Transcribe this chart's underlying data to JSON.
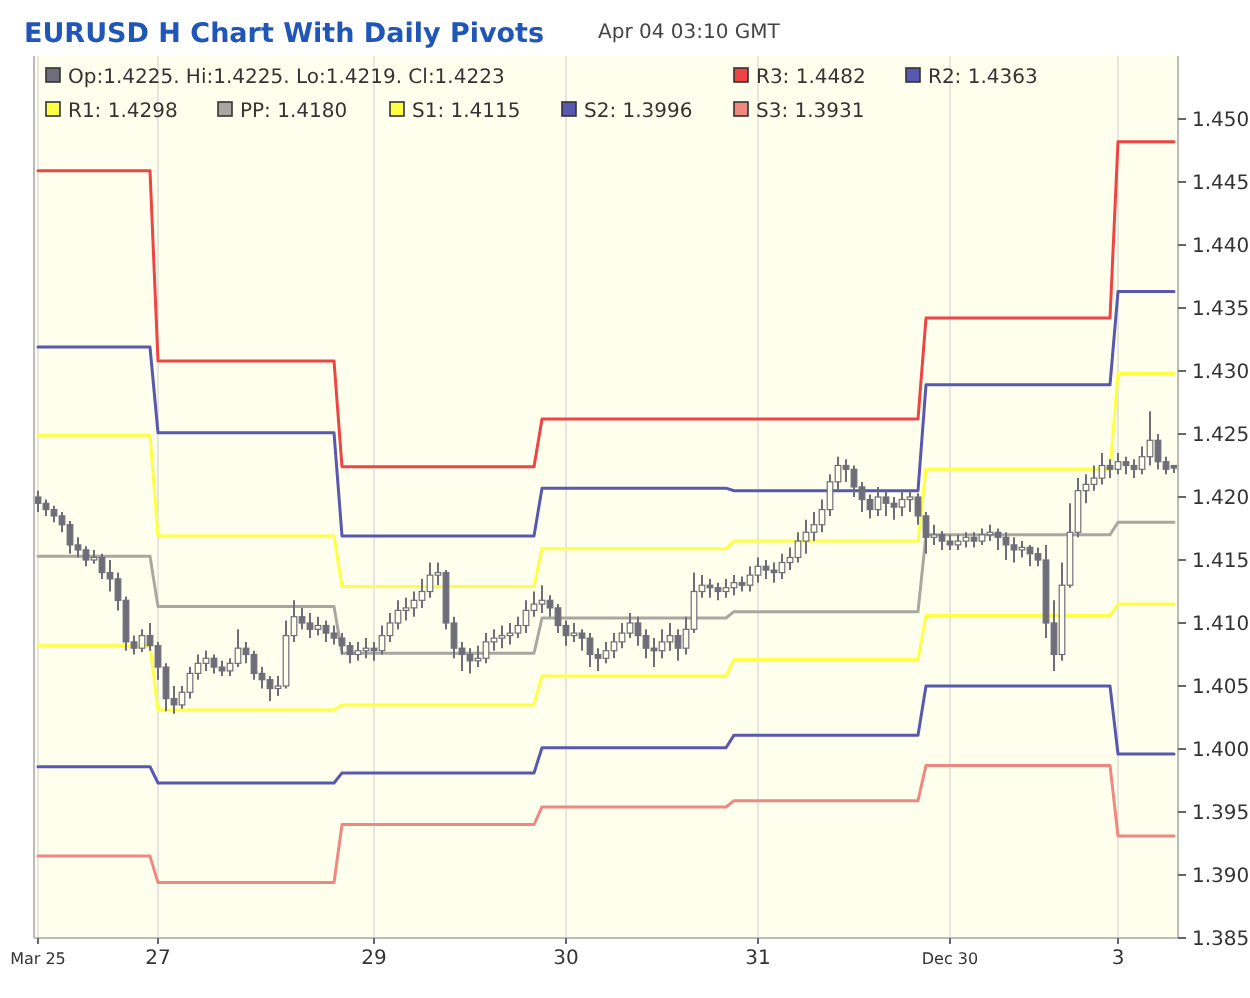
{
  "chart_data": {
    "type": "candlestick",
    "title": "EURUSD H Chart With Daily Pivots",
    "subtitle": "Apr 04 03:10 GMT",
    "categories": [
      "Mar 25",
      null,
      null,
      null,
      null,
      null,
      null,
      null,
      null,
      null,
      null,
      null,
      null,
      null,
      null,
      "27",
      null,
      null,
      null,
      null,
      null,
      null,
      null,
      null,
      null,
      null,
      null,
      null,
      null,
      null,
      null,
      null,
      null,
      null,
      null,
      null,
      null,
      null,
      null,
      null,
      null,
      null,
      "29",
      null,
      null,
      null,
      null,
      null,
      null,
      null,
      null,
      null,
      null,
      null,
      null,
      null,
      null,
      null,
      null,
      null,
      null,
      null,
      null,
      null,
      null,
      null,
      "30",
      null,
      null,
      null,
      null,
      null,
      null,
      null,
      null,
      null,
      null,
      null,
      null,
      null,
      null,
      null,
      null,
      null,
      null,
      null,
      null,
      null,
      null,
      null,
      "31",
      null,
      null,
      null,
      null,
      null,
      null,
      null,
      null,
      null,
      null,
      null,
      null,
      null,
      null,
      null,
      null,
      null,
      null,
      null,
      null,
      null,
      null,
      null,
      "Dec 30",
      null,
      null,
      null,
      null,
      null,
      null,
      null,
      null,
      null,
      null,
      null,
      null,
      null,
      null,
      null,
      null,
      null,
      null,
      null,
      null,
      "3",
      null,
      null,
      null,
      null,
      null,
      null,
      null
    ],
    "ylim": [
      1.385,
      1.455
    ],
    "yticks": [
      {
        "value": 1.385,
        "label": "1.385"
      },
      {
        "value": 1.39,
        "label": "1.390"
      },
      {
        "value": 1.395,
        "label": "1.395"
      },
      {
        "value": 1.4,
        "label": "1.400"
      },
      {
        "value": 1.405,
        "label": "1.405"
      },
      {
        "value": 1.41,
        "label": "1.410"
      },
      {
        "value": 1.415,
        "label": "1.415"
      },
      {
        "value": 1.42,
        "label": "1.420"
      },
      {
        "value": 1.425,
        "label": "1.425"
      },
      {
        "value": 1.43,
        "label": "1.430"
      },
      {
        "value": 1.435,
        "label": "1.435"
      },
      {
        "value": 1.44,
        "label": "1.440"
      },
      {
        "value": 1.445,
        "label": "1.445"
      },
      {
        "value": 1.45,
        "label": "1.450"
      }
    ],
    "grid": "x",
    "legend": "top left",
    "series": [
      {
        "name": "Op:1.4225. Hi:1.4225. Lo:1.4219. Cl:1.4223",
        "color": "#6e6e7a",
        "ohlc": [
          [
            1.42,
            1.4205,
            1.4188,
            1.4195
          ],
          [
            1.4195,
            1.4198,
            1.4185,
            1.419
          ],
          [
            1.419,
            1.4193,
            1.418,
            1.4185
          ],
          [
            1.4185,
            1.4188,
            1.4172,
            1.4178
          ],
          [
            1.4178,
            1.4181,
            1.4155,
            1.4162
          ],
          [
            1.4162,
            1.4168,
            1.4152,
            1.4158
          ],
          [
            1.4158,
            1.4161,
            1.4145,
            1.415
          ],
          [
            1.415,
            1.4158,
            1.4147,
            1.4152
          ],
          [
            1.4152,
            1.4155,
            1.4135,
            1.414
          ],
          [
            1.414,
            1.415,
            1.4125,
            1.4135
          ],
          [
            1.4135,
            1.414,
            1.411,
            1.4118
          ],
          [
            1.4118,
            1.4121,
            1.4078,
            1.4085
          ],
          [
            1.4085,
            1.409,
            1.4075,
            1.408
          ],
          [
            1.408,
            1.4095,
            1.4077,
            1.409
          ],
          [
            1.409,
            1.41,
            1.4078,
            1.4082
          ],
          [
            1.4082,
            1.4085,
            1.4055,
            1.4065
          ],
          [
            1.4065,
            1.4068,
            1.403,
            1.404
          ],
          [
            1.404,
            1.405,
            1.4028,
            1.4035
          ],
          [
            1.4035,
            1.405,
            1.4032,
            1.4045
          ],
          [
            1.4045,
            1.4065,
            1.404,
            1.406
          ],
          [
            1.406,
            1.4075,
            1.4055,
            1.4068
          ],
          [
            1.4068,
            1.4078,
            1.4062,
            1.4072
          ],
          [
            1.4072,
            1.4075,
            1.406,
            1.4065
          ],
          [
            1.4065,
            1.407,
            1.4058,
            1.4062
          ],
          [
            1.4062,
            1.4072,
            1.4058,
            1.4068
          ],
          [
            1.4068,
            1.4095,
            1.4065,
            1.408
          ],
          [
            1.408,
            1.4085,
            1.4068,
            1.4075
          ],
          [
            1.4075,
            1.4078,
            1.4055,
            1.406
          ],
          [
            1.406,
            1.4065,
            1.4048,
            1.4055
          ],
          [
            1.4055,
            1.4058,
            1.4038,
            1.4048
          ],
          [
            1.4048,
            1.4058,
            1.4042,
            1.405
          ],
          [
            1.405,
            1.4102,
            1.4048,
            1.409
          ],
          [
            1.409,
            1.4118,
            1.4085,
            1.4105
          ],
          [
            1.4105,
            1.4112,
            1.4095,
            1.41
          ],
          [
            1.41,
            1.4108,
            1.4088,
            1.4095
          ],
          [
            1.4095,
            1.4105,
            1.409,
            1.4098
          ],
          [
            1.4098,
            1.4102,
            1.4085,
            1.4092
          ],
          [
            1.4092,
            1.4098,
            1.4083,
            1.4088
          ],
          [
            1.4088,
            1.4092,
            1.4075,
            1.4082
          ],
          [
            1.4082,
            1.4085,
            1.4068,
            1.4075
          ],
          [
            1.4075,
            1.4085,
            1.407,
            1.4078
          ],
          [
            1.4078,
            1.4088,
            1.4072,
            1.408
          ],
          [
            1.408,
            1.4085,
            1.407,
            1.4078
          ],
          [
            1.4078,
            1.4098,
            1.4075,
            1.409
          ],
          [
            1.409,
            1.4108,
            1.4085,
            1.41
          ],
          [
            1.41,
            1.4118,
            1.4095,
            1.411
          ],
          [
            1.411,
            1.412,
            1.4102,
            1.4112
          ],
          [
            1.4112,
            1.4125,
            1.4105,
            1.4118
          ],
          [
            1.4118,
            1.4135,
            1.4112,
            1.4125
          ],
          [
            1.4125,
            1.4148,
            1.412,
            1.4138
          ],
          [
            1.4138,
            1.4148,
            1.413,
            1.414
          ],
          [
            1.414,
            1.4142,
            1.4095,
            1.41
          ],
          [
            1.41,
            1.4105,
            1.4072,
            1.408
          ],
          [
            1.408,
            1.4085,
            1.4062,
            1.4075
          ],
          [
            1.4075,
            1.408,
            1.406,
            1.407
          ],
          [
            1.407,
            1.4082,
            1.4065,
            1.4072
          ],
          [
            1.4072,
            1.4092,
            1.4068,
            1.4085
          ],
          [
            1.4085,
            1.4095,
            1.4078,
            1.4088
          ],
          [
            1.4088,
            1.4098,
            1.408,
            1.409
          ],
          [
            1.409,
            1.41,
            1.4083,
            1.4092
          ],
          [
            1.4092,
            1.4105,
            1.4088,
            1.4098
          ],
          [
            1.4098,
            1.4118,
            1.4092,
            1.411
          ],
          [
            1.411,
            1.4125,
            1.4105,
            1.4115
          ],
          [
            1.4115,
            1.413,
            1.4108,
            1.4118
          ],
          [
            1.4118,
            1.4122,
            1.4105,
            1.4112
          ],
          [
            1.4112,
            1.4115,
            1.4092,
            1.4098
          ],
          [
            1.4098,
            1.4102,
            1.4082,
            1.409
          ],
          [
            1.409,
            1.41,
            1.4085,
            1.4092
          ],
          [
            1.4092,
            1.4095,
            1.4078,
            1.4088
          ],
          [
            1.4088,
            1.4092,
            1.4065,
            1.4075
          ],
          [
            1.4075,
            1.408,
            1.4062,
            1.4072
          ],
          [
            1.4072,
            1.4085,
            1.4068,
            1.4078
          ],
          [
            1.4078,
            1.4092,
            1.4072,
            1.4085
          ],
          [
            1.4085,
            1.41,
            1.408,
            1.4092
          ],
          [
            1.4092,
            1.4108,
            1.4088,
            1.41
          ],
          [
            1.41,
            1.4105,
            1.4082,
            1.409
          ],
          [
            1.409,
            1.4095,
            1.4072,
            1.408
          ],
          [
            1.408,
            1.4088,
            1.4065,
            1.4078
          ],
          [
            1.4078,
            1.4095,
            1.4072,
            1.4085
          ],
          [
            1.4085,
            1.41,
            1.4078,
            1.409
          ],
          [
            1.409,
            1.4095,
            1.407,
            1.408
          ],
          [
            1.408,
            1.4105,
            1.4075,
            1.4095
          ],
          [
            1.4095,
            1.414,
            1.4092,
            1.4125
          ],
          [
            1.4125,
            1.4138,
            1.412,
            1.413
          ],
          [
            1.413,
            1.4135,
            1.412,
            1.4128
          ],
          [
            1.4128,
            1.4132,
            1.4118,
            1.4125
          ],
          [
            1.4125,
            1.4135,
            1.412,
            1.4128
          ],
          [
            1.4128,
            1.4138,
            1.4122,
            1.4132
          ],
          [
            1.4132,
            1.4137,
            1.4125,
            1.413
          ],
          [
            1.413,
            1.4145,
            1.4125,
            1.4138
          ],
          [
            1.4138,
            1.4152,
            1.4132,
            1.4145
          ],
          [
            1.4145,
            1.415,
            1.4135,
            1.4142
          ],
          [
            1.4142,
            1.4148,
            1.4132,
            1.414
          ],
          [
            1.414,
            1.4155,
            1.4135,
            1.4148
          ],
          [
            1.4148,
            1.416,
            1.4142,
            1.4152
          ],
          [
            1.4152,
            1.4172,
            1.4148,
            1.4165
          ],
          [
            1.4165,
            1.4182,
            1.4155,
            1.4172
          ],
          [
            1.4172,
            1.4188,
            1.4165,
            1.4178
          ],
          [
            1.4178,
            1.4198,
            1.4172,
            1.419
          ],
          [
            1.419,
            1.4218,
            1.4185,
            1.4212
          ],
          [
            1.4212,
            1.4232,
            1.4205,
            1.4225
          ],
          [
            1.4225,
            1.423,
            1.4212,
            1.4222
          ],
          [
            1.4222,
            1.4225,
            1.42,
            1.4208
          ],
          [
            1.4208,
            1.4212,
            1.4188,
            1.4198
          ],
          [
            1.4198,
            1.4202,
            1.4183,
            1.419
          ],
          [
            1.419,
            1.4208,
            1.4185,
            1.42
          ],
          [
            1.42,
            1.4205,
            1.4185,
            1.4195
          ],
          [
            1.4195,
            1.42,
            1.4182,
            1.4192
          ],
          [
            1.4192,
            1.4205,
            1.4185,
            1.4198
          ],
          [
            1.4198,
            1.4205,
            1.4188,
            1.42
          ],
          [
            1.42,
            1.4203,
            1.4178,
            1.4185
          ],
          [
            1.4185,
            1.4188,
            1.4155,
            1.4168
          ],
          [
            1.4168,
            1.4178,
            1.4162,
            1.417
          ],
          [
            1.417,
            1.4173,
            1.4158,
            1.4165
          ],
          [
            1.4165,
            1.417,
            1.4158,
            1.4162
          ],
          [
            1.4162,
            1.417,
            1.4158,
            1.4165
          ],
          [
            1.4165,
            1.4172,
            1.416,
            1.4168
          ],
          [
            1.4168,
            1.4172,
            1.416,
            1.4165
          ],
          [
            1.4165,
            1.4175,
            1.4162,
            1.417
          ],
          [
            1.417,
            1.4178,
            1.4165,
            1.4172
          ],
          [
            1.4172,
            1.4175,
            1.4158,
            1.4168
          ],
          [
            1.4168,
            1.4172,
            1.415,
            1.4162
          ],
          [
            1.4162,
            1.4168,
            1.4148,
            1.4158
          ],
          [
            1.4158,
            1.4165,
            1.4152,
            1.416
          ],
          [
            1.416,
            1.4162,
            1.4145,
            1.4155
          ],
          [
            1.4155,
            1.416,
            1.4145,
            1.415
          ],
          [
            1.415,
            1.4162,
            1.4088,
            1.41
          ],
          [
            1.41,
            1.4118,
            1.4062,
            1.4075
          ],
          [
            1.4075,
            1.4148,
            1.407,
            1.413
          ],
          [
            1.413,
            1.4195,
            1.4128,
            1.4172
          ],
          [
            1.4172,
            1.4215,
            1.4168,
            1.4205
          ],
          [
            1.4205,
            1.4218,
            1.4195,
            1.421
          ],
          [
            1.421,
            1.4225,
            1.4205,
            1.4215
          ],
          [
            1.4215,
            1.4235,
            1.421,
            1.4225
          ],
          [
            1.4225,
            1.423,
            1.4215,
            1.4222
          ],
          [
            1.4222,
            1.4235,
            1.4218,
            1.4228
          ],
          [
            1.4228,
            1.4232,
            1.4218,
            1.4225
          ],
          [
            1.4225,
            1.423,
            1.4215,
            1.4222
          ],
          [
            1.4222,
            1.424,
            1.4218,
            1.4232
          ],
          [
            1.4232,
            1.4268,
            1.4225,
            1.4245
          ],
          [
            1.4245,
            1.425,
            1.4222,
            1.4228
          ],
          [
            1.4228,
            1.4232,
            1.4218,
            1.4222
          ],
          [
            1.4225,
            1.4225,
            1.4219,
            1.4223
          ]
        ]
      },
      {
        "type": "line",
        "name": "R3: 1.4482",
        "color": "#ee4444",
        "values": [
          1.4459,
          1.4459,
          1.4459,
          1.4459,
          1.4459,
          1.4459,
          1.4459,
          1.4459,
          1.4459,
          1.4459,
          1.4459,
          1.4459,
          1.4459,
          1.4459,
          1.4459,
          1.4308,
          1.4308,
          1.4308,
          1.4308,
          1.4308,
          1.4308,
          1.4308,
          1.4308,
          1.4308,
          1.4308,
          1.4308,
          1.4308,
          1.4308,
          1.4308,
          1.4308,
          1.4308,
          1.4308,
          1.4308,
          1.4308,
          1.4308,
          1.4308,
          1.4308,
          1.4308,
          1.4224,
          1.4224,
          1.4224,
          1.4224,
          1.4224,
          1.4224,
          1.4224,
          1.4224,
          1.4224,
          1.4224,
          1.4224,
          1.4224,
          1.4224,
          1.4224,
          1.4224,
          1.4224,
          1.4224,
          1.4224,
          1.4224,
          1.4224,
          1.4224,
          1.4224,
          1.4224,
          1.4224,
          1.4224,
          1.4262,
          1.4262,
          1.4262,
          1.4262,
          1.4262,
          1.4262,
          1.4262,
          1.4262,
          1.4262,
          1.4262,
          1.4262,
          1.4262,
          1.4262,
          1.4262,
          1.4262,
          1.4262,
          1.4262,
          1.4262,
          1.4262,
          1.4262,
          1.4262,
          1.4262,
          1.4262,
          1.4262,
          1.4262,
          1.4262,
          1.4262,
          1.4262,
          1.4262,
          1.4262,
          1.4262,
          1.4262,
          1.4262,
          1.4262,
          1.4262,
          1.4262,
          1.4262,
          1.4262,
          1.4262,
          1.4262,
          1.4262,
          1.4262,
          1.4262,
          1.4262,
          1.4262,
          1.4262,
          1.4262,
          1.4262,
          1.4342,
          1.4342,
          1.4342,
          1.4342,
          1.4342,
          1.4342,
          1.4342,
          1.4342,
          1.4342,
          1.4342,
          1.4342,
          1.4342,
          1.4342,
          1.4342,
          1.4342,
          1.4342,
          1.4342,
          1.4342,
          1.4342,
          1.4342,
          1.4342,
          1.4342,
          1.4342,
          1.4342,
          1.4482,
          1.4482,
          1.4482,
          1.4482,
          1.4482,
          1.4482,
          1.4482,
          1.4482
        ]
      },
      {
        "type": "line",
        "name": "R2: 1.4363",
        "color": "#5858b0",
        "values": [
          1.4319,
          1.4319,
          1.4319,
          1.4319,
          1.4319,
          1.4319,
          1.4319,
          1.4319,
          1.4319,
          1.4319,
          1.4319,
          1.4319,
          1.4319,
          1.4319,
          1.4319,
          1.4251,
          1.4251,
          1.4251,
          1.4251,
          1.4251,
          1.4251,
          1.4251,
          1.4251,
          1.4251,
          1.4251,
          1.4251,
          1.4251,
          1.4251,
          1.4251,
          1.4251,
          1.4251,
          1.4251,
          1.4251,
          1.4251,
          1.4251,
          1.4251,
          1.4251,
          1.4251,
          1.4169,
          1.4169,
          1.4169,
          1.4169,
          1.4169,
          1.4169,
          1.4169,
          1.4169,
          1.4169,
          1.4169,
          1.4169,
          1.4169,
          1.4169,
          1.4169,
          1.4169,
          1.4169,
          1.4169,
          1.4169,
          1.4169,
          1.4169,
          1.4169,
          1.4169,
          1.4169,
          1.4169,
          1.4169,
          1.4207,
          1.4207,
          1.4207,
          1.4207,
          1.4207,
          1.4207,
          1.4207,
          1.4207,
          1.4207,
          1.4207,
          1.4207,
          1.4207,
          1.4207,
          1.4207,
          1.4207,
          1.4207,
          1.4207,
          1.4207,
          1.4207,
          1.4207,
          1.4207,
          1.4207,
          1.4207,
          1.4207,
          1.4205,
          1.4205,
          1.4205,
          1.4205,
          1.4205,
          1.4205,
          1.4205,
          1.4205,
          1.4205,
          1.4205,
          1.4205,
          1.4205,
          1.4205,
          1.4205,
          1.4205,
          1.4205,
          1.4205,
          1.4205,
          1.4205,
          1.4205,
          1.4205,
          1.4205,
          1.4205,
          1.4205,
          1.4289,
          1.4289,
          1.4289,
          1.4289,
          1.4289,
          1.4289,
          1.4289,
          1.4289,
          1.4289,
          1.4289,
          1.4289,
          1.4289,
          1.4289,
          1.4289,
          1.4289,
          1.4289,
          1.4289,
          1.4289,
          1.4289,
          1.4289,
          1.4289,
          1.4289,
          1.4289,
          1.4289,
          1.4363,
          1.4363,
          1.4363,
          1.4363,
          1.4363,
          1.4363,
          1.4363,
          1.4363
        ]
      },
      {
        "type": "line",
        "name": "R1: 1.4298",
        "color": "#ffff44",
        "values": [
          1.4249,
          1.4249,
          1.4249,
          1.4249,
          1.4249,
          1.4249,
          1.4249,
          1.4249,
          1.4249,
          1.4249,
          1.4249,
          1.4249,
          1.4249,
          1.4249,
          1.4249,
          1.4169,
          1.4169,
          1.4169,
          1.4169,
          1.4169,
          1.4169,
          1.4169,
          1.4169,
          1.4169,
          1.4169,
          1.4169,
          1.4169,
          1.4169,
          1.4169,
          1.4169,
          1.4169,
          1.4169,
          1.4169,
          1.4169,
          1.4169,
          1.4169,
          1.4169,
          1.4169,
          1.4129,
          1.4129,
          1.4129,
          1.4129,
          1.4129,
          1.4129,
          1.4129,
          1.4129,
          1.4129,
          1.4129,
          1.4129,
          1.4129,
          1.4129,
          1.4129,
          1.4129,
          1.4129,
          1.4129,
          1.4129,
          1.4129,
          1.4129,
          1.4129,
          1.4129,
          1.4129,
          1.4129,
          1.4129,
          1.4159,
          1.4159,
          1.4159,
          1.4159,
          1.4159,
          1.4159,
          1.4159,
          1.4159,
          1.4159,
          1.4159,
          1.4159,
          1.4159,
          1.4159,
          1.4159,
          1.4159,
          1.4159,
          1.4159,
          1.4159,
          1.4159,
          1.4159,
          1.4159,
          1.4159,
          1.4159,
          1.4159,
          1.4165,
          1.4165,
          1.4165,
          1.4165,
          1.4165,
          1.4165,
          1.4165,
          1.4165,
          1.4165,
          1.4165,
          1.4165,
          1.4165,
          1.4165,
          1.4165,
          1.4165,
          1.4165,
          1.4165,
          1.4165,
          1.4165,
          1.4165,
          1.4165,
          1.4165,
          1.4165,
          1.4165,
          1.4222,
          1.4222,
          1.4222,
          1.4222,
          1.4222,
          1.4222,
          1.4222,
          1.4222,
          1.4222,
          1.4222,
          1.4222,
          1.4222,
          1.4222,
          1.4222,
          1.4222,
          1.4222,
          1.4222,
          1.4222,
          1.4222,
          1.4222,
          1.4222,
          1.4222,
          1.4222,
          1.4222,
          1.4298,
          1.4298,
          1.4298,
          1.4298,
          1.4298,
          1.4298,
          1.4298,
          1.4298
        ]
      },
      {
        "type": "line",
        "name": "PP: 1.4180",
        "color": "#a8a8a0",
        "values": [
          1.4153,
          1.4153,
          1.4153,
          1.4153,
          1.4153,
          1.4153,
          1.4153,
          1.4153,
          1.4153,
          1.4153,
          1.4153,
          1.4153,
          1.4153,
          1.4153,
          1.4153,
          1.4113,
          1.4113,
          1.4113,
          1.4113,
          1.4113,
          1.4113,
          1.4113,
          1.4113,
          1.4113,
          1.4113,
          1.4113,
          1.4113,
          1.4113,
          1.4113,
          1.4113,
          1.4113,
          1.4113,
          1.4113,
          1.4113,
          1.4113,
          1.4113,
          1.4113,
          1.4113,
          1.4076,
          1.4076,
          1.4076,
          1.4076,
          1.4076,
          1.4076,
          1.4076,
          1.4076,
          1.4076,
          1.4076,
          1.4076,
          1.4076,
          1.4076,
          1.4076,
          1.4076,
          1.4076,
          1.4076,
          1.4076,
          1.4076,
          1.4076,
          1.4076,
          1.4076,
          1.4076,
          1.4076,
          1.4076,
          1.4104,
          1.4104,
          1.4104,
          1.4104,
          1.4104,
          1.4104,
          1.4104,
          1.4104,
          1.4104,
          1.4104,
          1.4104,
          1.4104,
          1.4104,
          1.4104,
          1.4104,
          1.4104,
          1.4104,
          1.4104,
          1.4104,
          1.4104,
          1.4104,
          1.4104,
          1.4104,
          1.4104,
          1.4109,
          1.4109,
          1.4109,
          1.4109,
          1.4109,
          1.4109,
          1.4109,
          1.4109,
          1.4109,
          1.4109,
          1.4109,
          1.4109,
          1.4109,
          1.4109,
          1.4109,
          1.4109,
          1.4109,
          1.4109,
          1.4109,
          1.4109,
          1.4109,
          1.4109,
          1.4109,
          1.4109,
          1.417,
          1.417,
          1.417,
          1.417,
          1.417,
          1.417,
          1.417,
          1.417,
          1.417,
          1.417,
          1.417,
          1.417,
          1.417,
          1.417,
          1.417,
          1.417,
          1.417,
          1.417,
          1.417,
          1.417,
          1.417,
          1.417,
          1.417,
          1.417,
          1.418,
          1.418,
          1.418,
          1.418,
          1.418,
          1.418,
          1.418,
          1.418
        ]
      },
      {
        "type": "line",
        "name": "S1: 1.4115",
        "color": "#ffff44",
        "values": [
          1.4082,
          1.4082,
          1.4082,
          1.4082,
          1.4082,
          1.4082,
          1.4082,
          1.4082,
          1.4082,
          1.4082,
          1.4082,
          1.4082,
          1.4082,
          1.4082,
          1.4082,
          1.4031,
          1.4031,
          1.4031,
          1.4031,
          1.4031,
          1.4031,
          1.4031,
          1.4031,
          1.4031,
          1.4031,
          1.4031,
          1.4031,
          1.4031,
          1.4031,
          1.4031,
          1.4031,
          1.4031,
          1.4031,
          1.4031,
          1.4031,
          1.4031,
          1.4031,
          1.4031,
          1.4035,
          1.4035,
          1.4035,
          1.4035,
          1.4035,
          1.4035,
          1.4035,
          1.4035,
          1.4035,
          1.4035,
          1.4035,
          1.4035,
          1.4035,
          1.4035,
          1.4035,
          1.4035,
          1.4035,
          1.4035,
          1.4035,
          1.4035,
          1.4035,
          1.4035,
          1.4035,
          1.4035,
          1.4035,
          1.4058,
          1.4058,
          1.4058,
          1.4058,
          1.4058,
          1.4058,
          1.4058,
          1.4058,
          1.4058,
          1.4058,
          1.4058,
          1.4058,
          1.4058,
          1.4058,
          1.4058,
          1.4058,
          1.4058,
          1.4058,
          1.4058,
          1.4058,
          1.4058,
          1.4058,
          1.4058,
          1.4058,
          1.4071,
          1.4071,
          1.4071,
          1.4071,
          1.4071,
          1.4071,
          1.4071,
          1.4071,
          1.4071,
          1.4071,
          1.4071,
          1.4071,
          1.4071,
          1.4071,
          1.4071,
          1.4071,
          1.4071,
          1.4071,
          1.4071,
          1.4071,
          1.4071,
          1.4071,
          1.4071,
          1.4071,
          1.4106,
          1.4106,
          1.4106,
          1.4106,
          1.4106,
          1.4106,
          1.4106,
          1.4106,
          1.4106,
          1.4106,
          1.4106,
          1.4106,
          1.4106,
          1.4106,
          1.4106,
          1.4106,
          1.4106,
          1.4106,
          1.4106,
          1.4106,
          1.4106,
          1.4106,
          1.4106,
          1.4106,
          1.4115,
          1.4115,
          1.4115,
          1.4115,
          1.4115,
          1.4115,
          1.4115,
          1.4115
        ]
      },
      {
        "type": "line",
        "name": "S2: 1.3996",
        "color": "#5858b0",
        "values": [
          1.3986,
          1.3986,
          1.3986,
          1.3986,
          1.3986,
          1.3986,
          1.3986,
          1.3986,
          1.3986,
          1.3986,
          1.3986,
          1.3986,
          1.3986,
          1.3986,
          1.3986,
          1.3973,
          1.3973,
          1.3973,
          1.3973,
          1.3973,
          1.3973,
          1.3973,
          1.3973,
          1.3973,
          1.3973,
          1.3973,
          1.3973,
          1.3973,
          1.3973,
          1.3973,
          1.3973,
          1.3973,
          1.3973,
          1.3973,
          1.3973,
          1.3973,
          1.3973,
          1.3973,
          1.3981,
          1.3981,
          1.3981,
          1.3981,
          1.3981,
          1.3981,
          1.3981,
          1.3981,
          1.3981,
          1.3981,
          1.3981,
          1.3981,
          1.3981,
          1.3981,
          1.3981,
          1.3981,
          1.3981,
          1.3981,
          1.3981,
          1.3981,
          1.3981,
          1.3981,
          1.3981,
          1.3981,
          1.3981,
          1.4001,
          1.4001,
          1.4001,
          1.4001,
          1.4001,
          1.4001,
          1.4001,
          1.4001,
          1.4001,
          1.4001,
          1.4001,
          1.4001,
          1.4001,
          1.4001,
          1.4001,
          1.4001,
          1.4001,
          1.4001,
          1.4001,
          1.4001,
          1.4001,
          1.4001,
          1.4001,
          1.4001,
          1.4011,
          1.4011,
          1.4011,
          1.4011,
          1.4011,
          1.4011,
          1.4011,
          1.4011,
          1.4011,
          1.4011,
          1.4011,
          1.4011,
          1.4011,
          1.4011,
          1.4011,
          1.4011,
          1.4011,
          1.4011,
          1.4011,
          1.4011,
          1.4011,
          1.4011,
          1.4011,
          1.4011,
          1.405,
          1.405,
          1.405,
          1.405,
          1.405,
          1.405,
          1.405,
          1.405,
          1.405,
          1.405,
          1.405,
          1.405,
          1.405,
          1.405,
          1.405,
          1.405,
          1.405,
          1.405,
          1.405,
          1.405,
          1.405,
          1.405,
          1.405,
          1.405,
          1.3996,
          1.3996,
          1.3996,
          1.3996,
          1.3996,
          1.3996,
          1.3996,
          1.3996
        ]
      },
      {
        "type": "line",
        "name": "S3: 1.3931",
        "color": "#f08880",
        "values": [
          1.3915,
          1.3915,
          1.3915,
          1.3915,
          1.3915,
          1.3915,
          1.3915,
          1.3915,
          1.3915,
          1.3915,
          1.3915,
          1.3915,
          1.3915,
          1.3915,
          1.3915,
          1.3894,
          1.3894,
          1.3894,
          1.3894,
          1.3894,
          1.3894,
          1.3894,
          1.3894,
          1.3894,
          1.3894,
          1.3894,
          1.3894,
          1.3894,
          1.3894,
          1.3894,
          1.3894,
          1.3894,
          1.3894,
          1.3894,
          1.3894,
          1.3894,
          1.3894,
          1.3894,
          1.394,
          1.394,
          1.394,
          1.394,
          1.394,
          1.394,
          1.394,
          1.394,
          1.394,
          1.394,
          1.394,
          1.394,
          1.394,
          1.394,
          1.394,
          1.394,
          1.394,
          1.394,
          1.394,
          1.394,
          1.394,
          1.394,
          1.394,
          1.394,
          1.394,
          1.3954,
          1.3954,
          1.3954,
          1.3954,
          1.3954,
          1.3954,
          1.3954,
          1.3954,
          1.3954,
          1.3954,
          1.3954,
          1.3954,
          1.3954,
          1.3954,
          1.3954,
          1.3954,
          1.3954,
          1.3954,
          1.3954,
          1.3954,
          1.3954,
          1.3954,
          1.3954,
          1.3954,
          1.3959,
          1.3959,
          1.3959,
          1.3959,
          1.3959,
          1.3959,
          1.3959,
          1.3959,
          1.3959,
          1.3959,
          1.3959,
          1.3959,
          1.3959,
          1.3959,
          1.3959,
          1.3959,
          1.3959,
          1.3959,
          1.3959,
          1.3959,
          1.3959,
          1.3959,
          1.3959,
          1.3959,
          1.3987,
          1.3987,
          1.3987,
          1.3987,
          1.3987,
          1.3987,
          1.3987,
          1.3987,
          1.3987,
          1.3987,
          1.3987,
          1.3987,
          1.3987,
          1.3987,
          1.3987,
          1.3987,
          1.3987,
          1.3987,
          1.3987,
          1.3987,
          1.3987,
          1.3987,
          1.3987,
          1.3987,
          1.3931,
          1.3931,
          1.3931,
          1.3931,
          1.3931,
          1.3931,
          1.3931,
          1.3931
        ]
      }
    ]
  }
}
